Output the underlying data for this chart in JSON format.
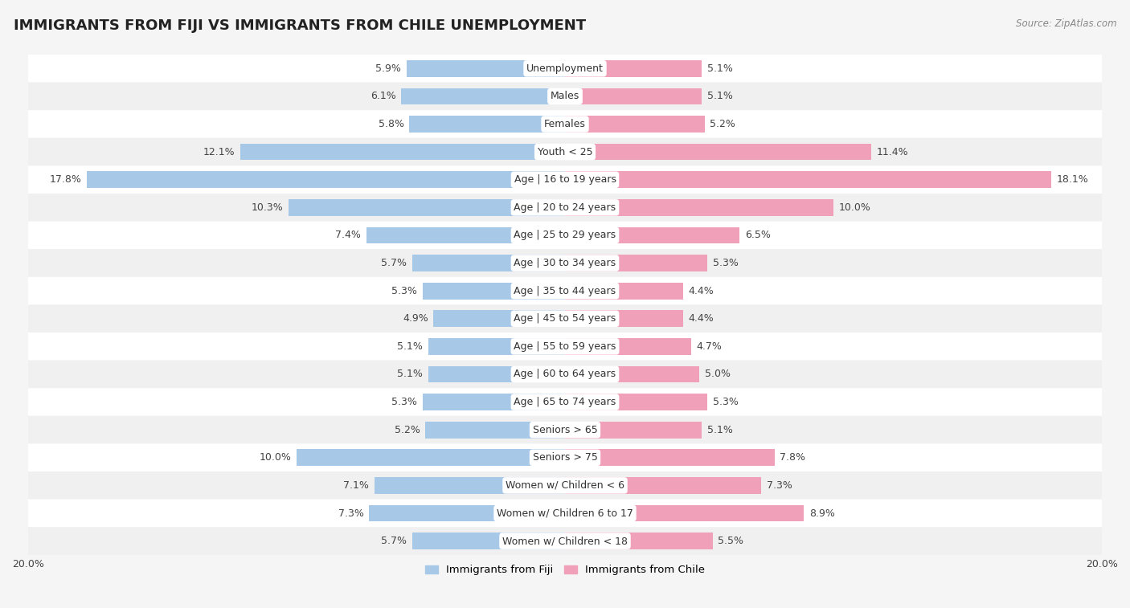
{
  "title": "IMMIGRANTS FROM FIJI VS IMMIGRANTS FROM CHILE UNEMPLOYMENT",
  "source": "Source: ZipAtlas.com",
  "categories": [
    "Unemployment",
    "Males",
    "Females",
    "Youth < 25",
    "Age | 16 to 19 years",
    "Age | 20 to 24 years",
    "Age | 25 to 29 years",
    "Age | 30 to 34 years",
    "Age | 35 to 44 years",
    "Age | 45 to 54 years",
    "Age | 55 to 59 years",
    "Age | 60 to 64 years",
    "Age | 65 to 74 years",
    "Seniors > 65",
    "Seniors > 75",
    "Women w/ Children < 6",
    "Women w/ Children 6 to 17",
    "Women w/ Children < 18"
  ],
  "fiji_values": [
    5.9,
    6.1,
    5.8,
    12.1,
    17.8,
    10.3,
    7.4,
    5.7,
    5.3,
    4.9,
    5.1,
    5.1,
    5.3,
    5.2,
    10.0,
    7.1,
    7.3,
    5.7
  ],
  "chile_values": [
    5.1,
    5.1,
    5.2,
    11.4,
    18.1,
    10.0,
    6.5,
    5.3,
    4.4,
    4.4,
    4.7,
    5.0,
    5.3,
    5.1,
    7.8,
    7.3,
    8.9,
    5.5
  ],
  "fiji_color": "#a8c8e8",
  "chile_color": "#f0a0b8",
  "fiji_label": "Immigrants from Fiji",
  "chile_label": "Immigrants from Chile",
  "xlim": 20.0,
  "row_colors_even": "#f0f0f0",
  "row_colors_odd": "#ffffff",
  "title_fontsize": 13,
  "label_fontsize": 9,
  "value_fontsize": 9,
  "axis_bg": "#f5f5f5"
}
